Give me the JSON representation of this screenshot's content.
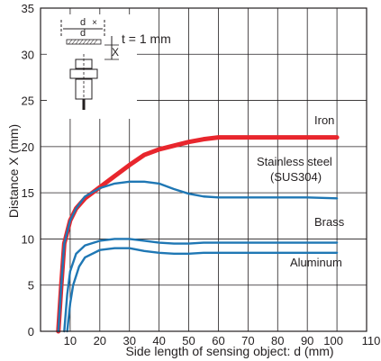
{
  "chart_data": {
    "type": "line",
    "xlabel": "Side length of sensing object: d (mm)",
    "ylabel": "Distance X (mm)",
    "xlim": [
      0,
      110
    ],
    "ylim": [
      0,
      35
    ],
    "x_ticks": [
      10,
      20,
      30,
      40,
      50,
      60,
      70,
      80,
      90,
      100,
      110
    ],
    "y_ticks": [
      0,
      5,
      10,
      15,
      20,
      25,
      30,
      35
    ],
    "grid": true,
    "series": [
      {
        "name": "Iron",
        "color": "#e8262d",
        "points": [
          [
            6,
            0
          ],
          [
            7,
            5
          ],
          [
            8,
            9.5
          ],
          [
            10,
            12
          ],
          [
            12,
            13.3
          ],
          [
            15,
            14.4
          ],
          [
            20,
            15.6
          ],
          [
            25,
            16.8
          ],
          [
            30,
            18
          ],
          [
            35,
            19.1
          ],
          [
            40,
            19.7
          ],
          [
            45,
            20.1
          ],
          [
            50,
            20.5
          ],
          [
            55,
            20.8
          ],
          [
            60,
            21
          ],
          [
            70,
            21
          ],
          [
            80,
            21
          ],
          [
            90,
            21
          ],
          [
            100,
            21
          ]
        ]
      },
      {
        "name": "Stainless steel (SUS304)",
        "color": "#1f77b4",
        "points": [
          [
            6,
            0
          ],
          [
            7,
            5
          ],
          [
            8,
            9.5
          ],
          [
            10,
            12
          ],
          [
            12,
            13.3
          ],
          [
            15,
            14.6
          ],
          [
            20,
            15.5
          ],
          [
            25,
            16
          ],
          [
            30,
            16.2
          ],
          [
            35,
            16.2
          ],
          [
            40,
            16
          ],
          [
            45,
            15.4
          ],
          [
            50,
            14.9
          ],
          [
            55,
            14.6
          ],
          [
            60,
            14.5
          ],
          [
            70,
            14.5
          ],
          [
            80,
            14.5
          ],
          [
            90,
            14.5
          ],
          [
            100,
            14.4
          ]
        ]
      },
      {
        "name": "Brass",
        "color": "#1f77b4",
        "points": [
          [
            8,
            0
          ],
          [
            9,
            4
          ],
          [
            10,
            6.5
          ],
          [
            12,
            8.4
          ],
          [
            15,
            9.3
          ],
          [
            20,
            9.8
          ],
          [
            25,
            10
          ],
          [
            30,
            10
          ],
          [
            35,
            9.8
          ],
          [
            40,
            9.6
          ],
          [
            45,
            9.5
          ],
          [
            50,
            9.5
          ],
          [
            55,
            9.6
          ],
          [
            60,
            9.6
          ],
          [
            70,
            9.6
          ],
          [
            80,
            9.6
          ],
          [
            90,
            9.6
          ],
          [
            100,
            9.6
          ]
        ]
      },
      {
        "name": "Aluminum",
        "color": "#1f77b4",
        "points": [
          [
            9,
            0
          ],
          [
            10,
            3
          ],
          [
            11,
            5
          ],
          [
            13,
            7
          ],
          [
            15,
            8
          ],
          [
            20,
            8.8
          ],
          [
            25,
            9
          ],
          [
            30,
            9
          ],
          [
            35,
            8.7
          ],
          [
            40,
            8.5
          ],
          [
            45,
            8.4
          ],
          [
            50,
            8.4
          ],
          [
            55,
            8.5
          ],
          [
            60,
            8.5
          ],
          [
            70,
            8.5
          ],
          [
            80,
            8.5
          ],
          [
            90,
            8.5
          ],
          [
            100,
            8.5
          ]
        ]
      }
    ],
    "inset": {
      "d_label": "d",
      "x_label": "X",
      "t_label": "t = 1 mm"
    }
  }
}
